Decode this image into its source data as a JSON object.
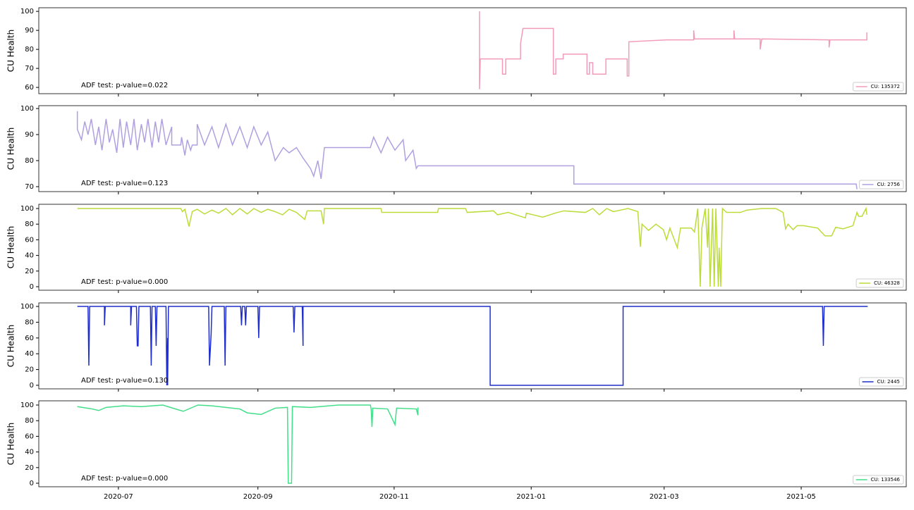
{
  "x_axis": {
    "xlim": [
      2020.4,
      2021.457
    ],
    "xticks": [
      {
        "value": 2020.497,
        "label": "2020-07"
      },
      {
        "value": 2020.667,
        "label": "2020-09"
      },
      {
        "value": 2020.833,
        "label": "2020-11"
      },
      {
        "value": 2021.0,
        "label": "2021-01"
      },
      {
        "value": 2021.162,
        "label": "2021-03"
      },
      {
        "value": 2021.329,
        "label": "2021-05"
      }
    ]
  },
  "chart_data": [
    {
      "type": "line",
      "ylabel": "CU Health",
      "annotation": "ADF test: p-value=0.022",
      "ylim": [
        56.7,
        101.9
      ],
      "yticks": [
        60,
        70,
        80,
        90,
        100
      ],
      "legend": "lower right",
      "x": [
        2020.937,
        2020.937,
        2020.938,
        2020.939,
        2020.965,
        2020.965,
        2020.969,
        2020.969,
        2020.987,
        2020.987,
        2020.99,
        2021.027,
        2021.027,
        2021.03,
        2021.03,
        2021.039,
        2021.039,
        2021.068,
        2021.068,
        2021.071,
        2021.071,
        2021.075,
        2021.075,
        2021.091,
        2021.091,
        2021.117,
        2021.117,
        2021.119,
        2021.119,
        2021.165,
        2021.198,
        2021.198,
        2021.199,
        2021.247,
        2021.247,
        2021.248,
        2021.279,
        2021.279,
        2021.281,
        2021.363,
        2021.363,
        2021.364,
        2021.409,
        2021.409
      ],
      "series": [
        {
          "name": "CU: 135372",
          "color": "#f29bbb",
          "values": [
            100,
            59,
            75,
            75,
            75,
            67,
            67,
            75,
            75,
            83,
            91,
            91,
            67,
            67,
            75,
            75,
            77.5,
            77.5,
            67,
            67,
            73,
            73,
            67,
            67,
            75,
            75,
            66,
            66,
            84,
            85,
            85,
            90,
            85.5,
            85.5,
            90,
            85.5,
            85.5,
            80,
            85.5,
            85,
            81,
            85,
            85,
            89
          ]
        }
      ]
    },
    {
      "type": "line",
      "ylabel": "CU Health",
      "annotation": "ADF test: p-value=0.123",
      "ylim": [
        68.1,
        101.1
      ],
      "yticks": [
        70,
        80,
        90,
        100
      ],
      "legend": "lower right",
      "x": [
        2020.447,
        2020.447,
        2020.452,
        2020.456,
        2020.46,
        2020.464,
        2020.469,
        2020.473,
        2020.477,
        2020.482,
        2020.486,
        2020.49,
        2020.495,
        2020.499,
        2020.503,
        2020.507,
        2020.512,
        2020.516,
        2020.52,
        2020.525,
        2020.529,
        2020.533,
        2020.538,
        2020.542,
        2020.546,
        2020.55,
        2020.555,
        2020.562,
        2020.562,
        2020.573,
        2020.574,
        2020.578,
        2020.581,
        2020.585,
        2020.587,
        2020.593,
        2020.593,
        2020.602,
        2020.611,
        2020.619,
        2020.628,
        2020.636,
        2020.645,
        2020.654,
        2020.662,
        2020.671,
        2020.679,
        2020.688,
        2020.698,
        2020.705,
        2020.714,
        2020.722,
        2020.731,
        2020.735,
        2020.74,
        2020.744,
        2020.748,
        2020.804,
        2020.808,
        2020.817,
        2020.825,
        2020.834,
        2020.844,
        2020.847,
        2020.856,
        2020.86,
        2020.862,
        2021.052,
        2021.052,
        2021.396,
        2021.397
      ],
      "series": [
        {
          "name": "CU: 2756",
          "color": "#b0a0e0",
          "values": [
            99,
            92,
            88,
            95,
            90,
            96,
            86,
            93,
            84,
            96,
            87,
            92,
            83,
            96,
            85,
            95,
            86,
            96,
            84,
            94,
            87,
            96,
            85,
            95,
            87,
            96,
            86,
            93,
            86,
            86,
            89,
            82,
            88,
            84,
            86,
            86,
            94,
            86,
            93,
            85,
            94,
            86,
            93,
            85,
            93,
            86,
            91,
            80,
            85,
            83,
            85,
            81,
            77,
            74,
            80,
            73,
            85,
            85,
            89,
            83,
            89,
            84,
            88,
            80,
            84,
            77,
            78,
            78,
            71,
            71,
            69
          ]
        }
      ]
    },
    {
      "type": "line",
      "ylabel": "CU Health",
      "annotation": "ADF test: p-value=0.000",
      "ylim": [
        -4.5,
        105.4
      ],
      "yticks": [
        0,
        20,
        40,
        60,
        80,
        100
      ],
      "legend": "lower right",
      "x": [
        2020.447,
        2020.573,
        2020.575,
        2020.578,
        2020.583,
        2020.587,
        2020.593,
        2020.602,
        2020.611,
        2020.619,
        2020.628,
        2020.636,
        2020.645,
        2020.654,
        2020.662,
        2020.671,
        2020.679,
        2020.688,
        2020.697,
        2020.705,
        2020.714,
        2020.724,
        2020.727,
        2020.744,
        2020.747,
        2020.748,
        2020.817,
        2020.818,
        2020.886,
        2020.887,
        2020.92,
        2020.922,
        2020.954,
        2020.959,
        2020.972,
        2020.993,
        2020.994,
        2021.014,
        2021.032,
        2021.04,
        2021.066,
        2021.075,
        2021.083,
        2021.092,
        2021.1,
        2021.118,
        2021.13,
        2021.133,
        2021.135,
        2021.143,
        2021.152,
        2021.161,
        2021.165,
        2021.169,
        2021.178,
        2021.182,
        2021.195,
        2021.199,
        2021.203,
        2021.206,
        2021.208,
        2021.212,
        2021.215,
        2021.216,
        2021.218,
        2021.221,
        2021.223,
        2021.225,
        2021.228,
        2021.229,
        2021.231,
        2021.233,
        2021.238,
        2021.255,
        2021.263,
        2021.281,
        2021.298,
        2021.307,
        2021.31,
        2021.313,
        2021.319,
        2021.324,
        2021.332,
        2021.349,
        2021.358,
        2021.366,
        2021.371,
        2021.38,
        2021.392,
        2021.397,
        2021.399,
        2021.403,
        2021.408,
        2021.409
      ],
      "series": [
        {
          "name": "CU: 46328",
          "color": "#bcdc3a",
          "values": [
            100,
            100,
            96,
            99,
            77,
            96,
            99,
            93,
            98,
            94,
            100,
            92,
            100,
            93,
            100,
            95,
            99,
            96,
            92,
            99,
            95,
            86,
            97,
            97,
            80,
            100,
            100,
            95,
            95,
            100,
            100,
            95,
            97,
            92,
            95,
            88,
            94,
            89,
            95,
            97,
            95,
            100,
            92,
            100,
            96,
            100,
            96,
            51,
            80,
            72,
            80,
            73,
            60,
            75,
            50,
            75,
            75,
            70,
            100,
            0,
            75,
            100,
            50,
            100,
            0,
            100,
            0,
            100,
            0,
            50,
            0,
            100,
            95,
            95,
            98,
            100,
            100,
            95,
            74,
            80,
            73,
            78,
            78,
            75,
            65,
            65,
            76,
            74,
            78,
            95,
            90,
            90,
            100,
            92
          ]
        }
      ]
    },
    {
      "type": "line",
      "ylabel": "CU Health",
      "annotation": "ADF test: p-value=0.130",
      "ylim": [
        -4.5,
        104.5
      ],
      "yticks": [
        0,
        20,
        40,
        60,
        80,
        100
      ],
      "legend": "lower right",
      "x": [
        2020.447,
        2020.46,
        2020.461,
        2020.462,
        2020.48,
        2020.48,
        2020.481,
        2020.512,
        2020.512,
        2020.513,
        2020.519,
        2020.52,
        2020.521,
        2020.522,
        2020.536,
        2020.537,
        2020.538,
        2020.542,
        2020.543,
        2020.544,
        2020.555,
        2020.556,
        2020.557,
        2020.557,
        2020.558,
        2020.607,
        2020.608,
        2020.61,
        2020.611,
        2020.626,
        2020.627,
        2020.628,
        2020.646,
        2020.647,
        2020.648,
        2020.651,
        2020.652,
        2020.653,
        2020.667,
        2020.668,
        2020.669,
        2020.71,
        2020.711,
        2020.712,
        2020.721,
        2020.722,
        2020.722,
        2020.95,
        2020.95,
        2021.112,
        2021.112,
        2021.355,
        2021.356,
        2021.357,
        2021.41
      ],
      "series": [
        {
          "name": "CU: 2445",
          "color": "#1f2ecc",
          "values": [
            100,
            100,
            25,
            100,
            100,
            76,
            100,
            100,
            76,
            100,
            100,
            50,
            50,
            100,
            100,
            25,
            100,
            100,
            50,
            100,
            100,
            0,
            60,
            0,
            100,
            100,
            25,
            65,
            100,
            100,
            25,
            100,
            100,
            76,
            100,
            100,
            76,
            100,
            100,
            60,
            100,
            100,
            67,
            100,
            100,
            50,
            100,
            100,
            0,
            0,
            100,
            100,
            50,
            100,
            100
          ]
        }
      ]
    },
    {
      "type": "line",
      "ylabel": "CU Health",
      "annotation": "ADF test: p-value=0.000",
      "ylim": [
        -4.5,
        105.4
      ],
      "yticks": [
        0,
        20,
        40,
        60,
        80,
        100
      ],
      "legend": "lower right",
      "x": [
        2020.447,
        2020.465,
        2020.473,
        2020.482,
        2020.503,
        2020.525,
        2020.551,
        2020.576,
        2020.594,
        2020.611,
        2020.628,
        2020.645,
        2020.654,
        2020.671,
        2020.688,
        2020.703,
        2020.704,
        2020.708,
        2020.709,
        2020.731,
        2020.765,
        2020.804,
        2020.805,
        2020.806,
        2020.807,
        2020.825,
        2020.834,
        2020.836,
        2020.86,
        2020.862,
        2020.862
      ],
      "series": [
        {
          "name": "CU: 133546",
          "color": "#43de8a",
          "values": [
            98,
            95,
            93,
            97,
            99,
            98,
            100,
            92,
            100,
            99,
            97,
            95,
            90,
            88,
            96,
            97,
            0,
            0,
            98,
            97,
            100,
            100,
            95,
            72,
            96,
            95,
            75,
            96,
            95,
            87,
            97
          ]
        }
      ]
    }
  ]
}
